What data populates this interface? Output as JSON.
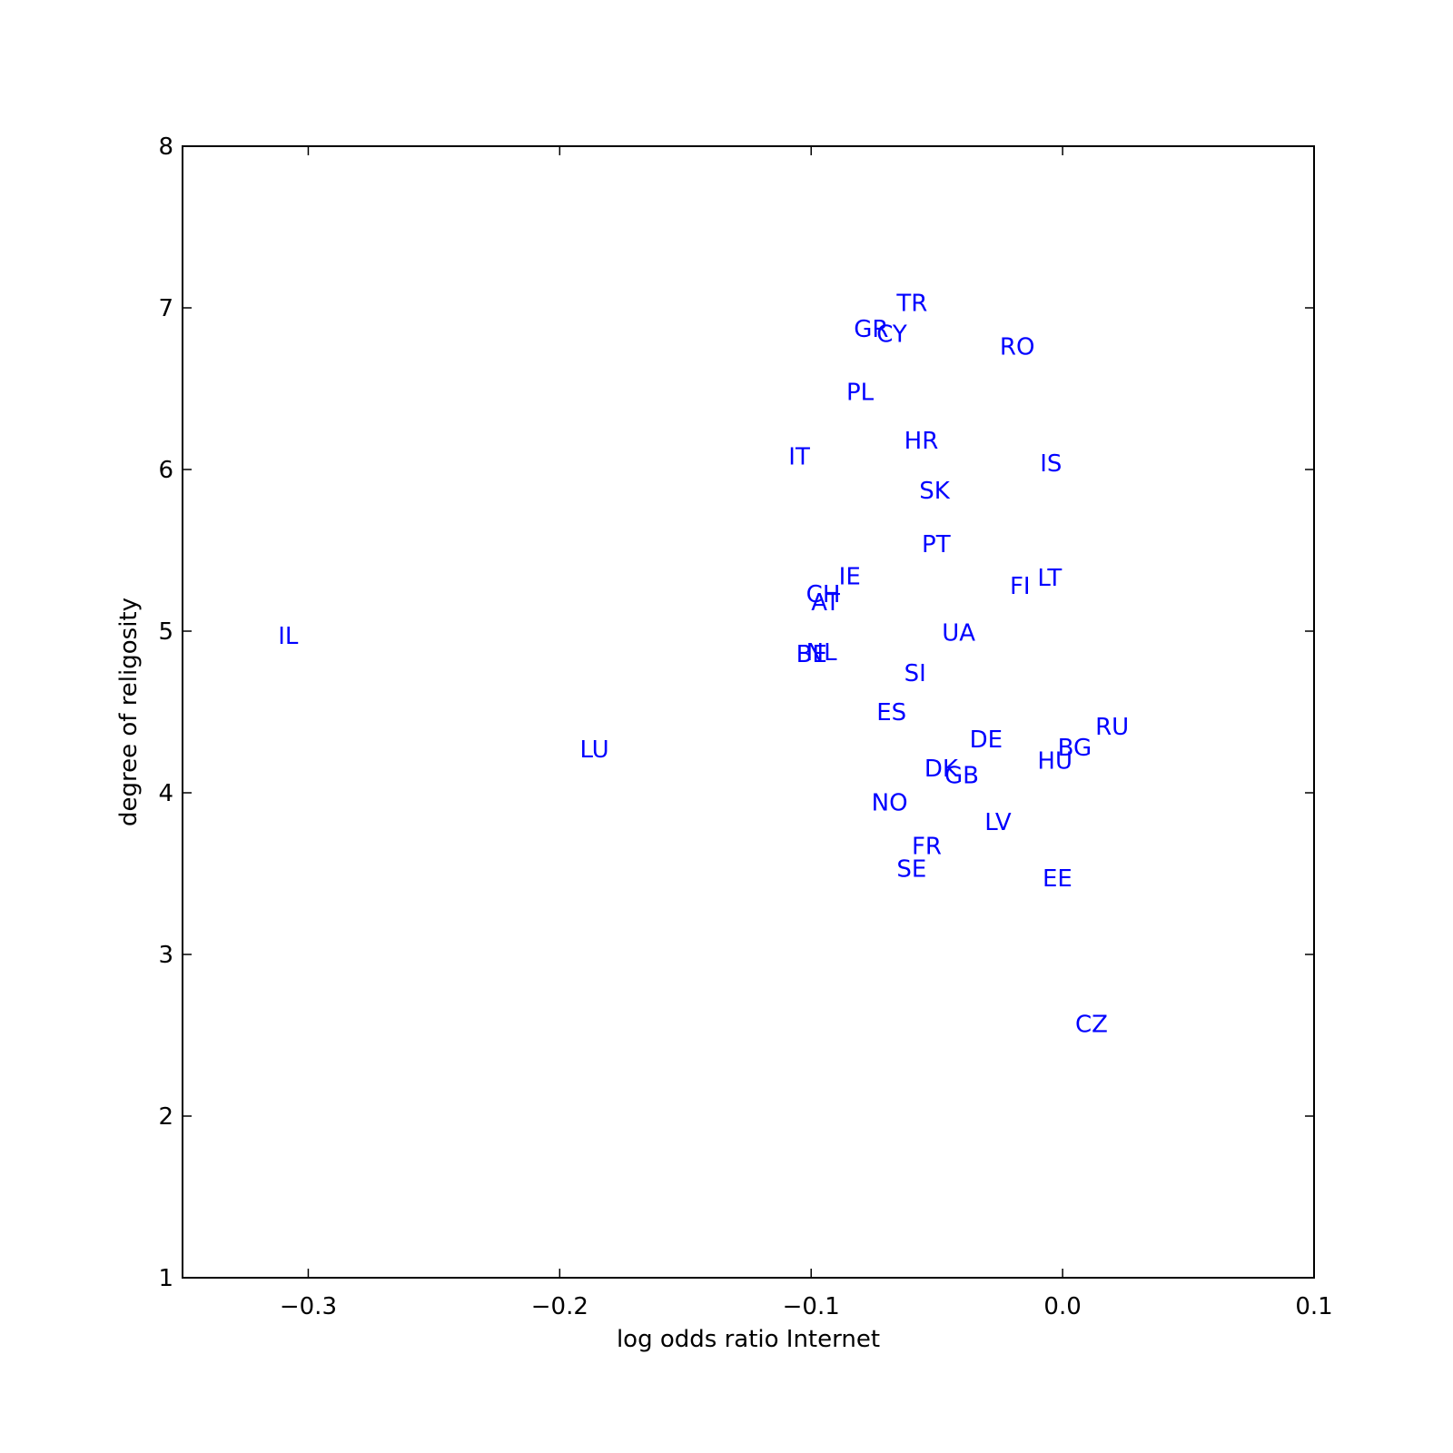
{
  "chart_data": {
    "type": "scatter",
    "x_label": "log odds ratio Internet",
    "y_label": "degree of religosity",
    "xlim": [
      -0.35,
      0.1
    ],
    "ylim": [
      1,
      8
    ],
    "xticks": [
      {
        "value": -0.3,
        "label": "−0.3"
      },
      {
        "value": -0.2,
        "label": "−0.2"
      },
      {
        "value": -0.1,
        "label": "−0.1"
      },
      {
        "value": 0.0,
        "label": "0.0"
      },
      0.1
    ],
    "yticks": [
      1,
      2,
      3,
      4,
      5,
      6,
      7,
      8
    ],
    "color": "#0000ff",
    "labels": [
      "TR",
      "GR",
      "CY",
      "RO",
      "PL",
      "HR",
      "IT",
      "IS",
      "SK",
      "PT",
      "IE",
      "LT",
      "FI",
      "CH",
      "AT",
      "UA",
      "IL",
      "BE",
      "NL",
      "SI",
      "ES",
      "RU",
      "DE",
      "BG",
      "LU",
      "HU",
      "DK",
      "GB",
      "NO",
      "LV",
      "FR",
      "SE",
      "EE",
      "CZ"
    ],
    "x": [
      -0.066,
      -0.083,
      -0.074,
      -0.025,
      -0.086,
      -0.063,
      -0.109,
      -0.009,
      -0.057,
      -0.056,
      -0.089,
      -0.01,
      -0.021,
      -0.102,
      -0.1,
      -0.048,
      -0.312,
      -0.106,
      -0.102,
      -0.063,
      -0.074,
      0.013,
      -0.037,
      -0.002,
      -0.192,
      -0.01,
      -0.055,
      -0.047,
      -0.076,
      -0.031,
      -0.06,
      -0.066,
      -0.008,
      0.005
    ],
    "values": [
      6.98,
      6.82,
      6.79,
      6.71,
      6.43,
      6.13,
      6.03,
      5.99,
      5.82,
      5.49,
      5.29,
      5.28,
      5.23,
      5.18,
      5.13,
      4.94,
      4.92,
      4.81,
      4.82,
      4.69,
      4.45,
      4.36,
      4.28,
      4.23,
      4.22,
      4.15,
      4.1,
      4.06,
      3.89,
      3.77,
      3.62,
      3.48,
      3.42,
      2.52
    ]
  }
}
